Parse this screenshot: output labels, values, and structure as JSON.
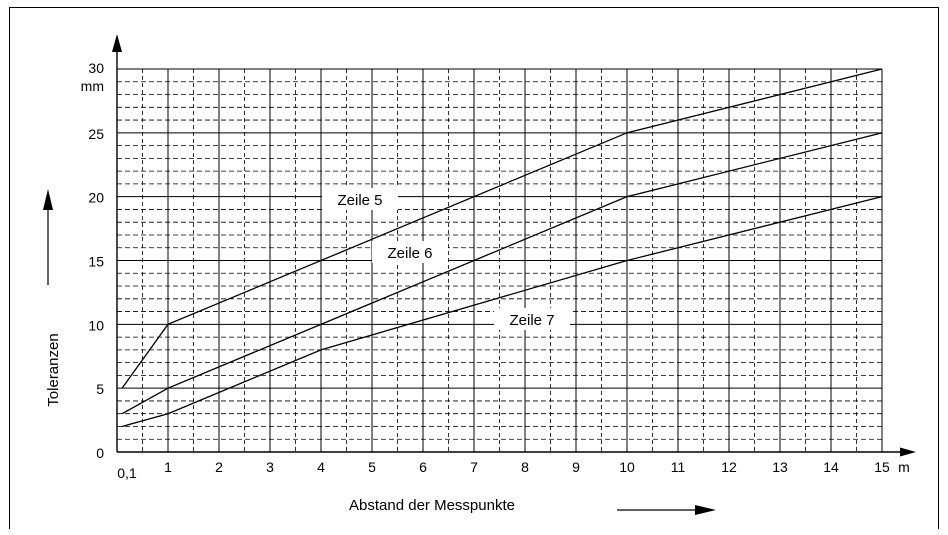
{
  "chart_data": {
    "type": "line",
    "xlabel": "Abstand der Messpunkte",
    "ylabel": "Toleranzen",
    "x_unit": "m",
    "y_unit": "mm",
    "xlim": [
      0.1,
      15
    ],
    "ylim": [
      0,
      30
    ],
    "x_ticks": [
      "0,1",
      "1",
      "2",
      "3",
      "4",
      "5",
      "6",
      "7",
      "8",
      "9",
      "10",
      "11",
      "12",
      "13",
      "14",
      "15"
    ],
    "y_ticks": [
      "0",
      "5",
      "10",
      "15",
      "20",
      "25",
      "30"
    ],
    "grid": true,
    "series": [
      {
        "name": "Zeile 5",
        "x": [
          0.1,
          1,
          10,
          15
        ],
        "y": [
          5,
          10,
          25,
          30
        ]
      },
      {
        "name": "Zeile 6",
        "x": [
          0.1,
          1,
          10,
          15
        ],
        "y": [
          3,
          5,
          20,
          25
        ]
      },
      {
        "name": "Zeile 7",
        "x": [
          0.1,
          1,
          4,
          10,
          15
        ],
        "y": [
          2,
          3,
          8,
          15,
          20
        ]
      }
    ]
  }
}
